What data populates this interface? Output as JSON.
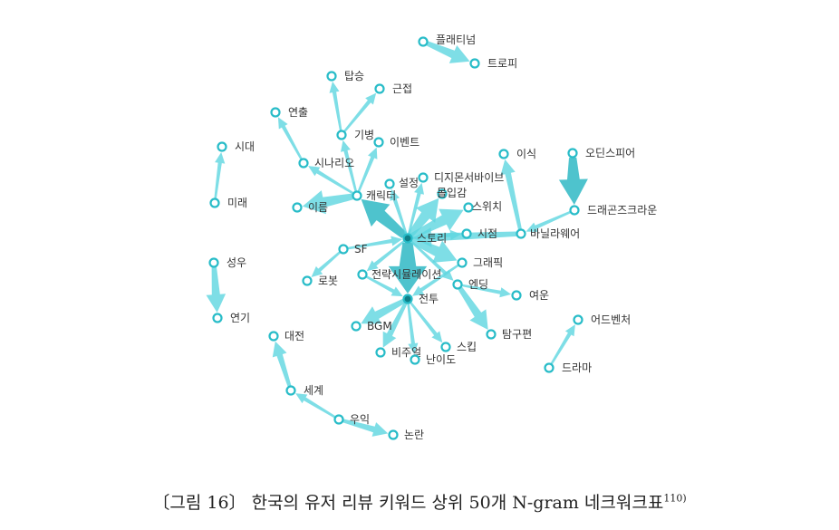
{
  "colors": {
    "edge": "#5ED6E0",
    "edge_dark": "#2FB8C4",
    "node_stroke": "#28BCC8",
    "node_center": "#0F7F88"
  },
  "nodes": [
    {
      "id": "platinum",
      "label": "플래티넘"
    },
    {
      "id": "trophy",
      "label": "트로피"
    },
    {
      "id": "tapseung",
      "label": "탑승"
    },
    {
      "id": "geunjeop",
      "label": "근접"
    },
    {
      "id": "yeonchul",
      "label": "연출"
    },
    {
      "id": "gibyeong",
      "label": "기병"
    },
    {
      "id": "event",
      "label": "이벤트"
    },
    {
      "id": "sidae",
      "label": "시대"
    },
    {
      "id": "scenario",
      "label": "시나리오"
    },
    {
      "id": "isik",
      "label": "이식"
    },
    {
      "id": "odinsphere",
      "label": "오딘스피어"
    },
    {
      "id": "divinity",
      "label": "디지몬서바이브"
    },
    {
      "id": "seoljeong",
      "label": "설정"
    },
    {
      "id": "character",
      "label": "캐릭터"
    },
    {
      "id": "immersion",
      "label": "몰입감"
    },
    {
      "id": "mirae",
      "label": "미래"
    },
    {
      "id": "ireum",
      "label": "이름"
    },
    {
      "id": "switch",
      "label": "스위치"
    },
    {
      "id": "dragoncrown",
      "label": "드래곤즈크라운"
    },
    {
      "id": "story",
      "label": "스토리"
    },
    {
      "id": "sijeom",
      "label": "시점"
    },
    {
      "id": "vanilla",
      "label": "바닐라웨어"
    },
    {
      "id": "sf",
      "label": "SF"
    },
    {
      "id": "seongwoo",
      "label": "성우"
    },
    {
      "id": "graphic",
      "label": "그래픽"
    },
    {
      "id": "simulation",
      "label": "전략시뮬레이션"
    },
    {
      "id": "robot",
      "label": "로봇"
    },
    {
      "id": "ending",
      "label": "엔딩"
    },
    {
      "id": "battle",
      "label": "전투"
    },
    {
      "id": "yeoun",
      "label": "여운"
    },
    {
      "id": "yeongi",
      "label": "연기"
    },
    {
      "id": "adventure",
      "label": "어드벤처"
    },
    {
      "id": "bgm",
      "label": "BGM"
    },
    {
      "id": "daejeon",
      "label": "대전"
    },
    {
      "id": "tamgu",
      "label": "탐구편"
    },
    {
      "id": "skip",
      "label": "스킵"
    },
    {
      "id": "visual",
      "label": "비주얼"
    },
    {
      "id": "nanido",
      "label": "난이도"
    },
    {
      "id": "drama",
      "label": "드라마"
    },
    {
      "id": "segye",
      "label": "세계"
    },
    {
      "id": "uik",
      "label": "우익"
    },
    {
      "id": "nonran",
      "label": "논란"
    }
  ],
  "edges": [
    {
      "from": "platinum",
      "to": "trophy",
      "weight": 3
    },
    {
      "from": "gibyeong",
      "to": "tapseung",
      "weight": 1
    },
    {
      "from": "gibyeong",
      "to": "geunjeop",
      "weight": 1
    },
    {
      "from": "scenario",
      "to": "yeonchul",
      "weight": 1
    },
    {
      "from": "character",
      "to": "gibyeong",
      "weight": 1
    },
    {
      "from": "character",
      "to": "event",
      "weight": 1
    },
    {
      "from": "mirae",
      "to": "sidae",
      "weight": 1
    },
    {
      "from": "character",
      "to": "scenario",
      "weight": 1
    },
    {
      "from": "character",
      "to": "ireum",
      "weight": 4
    },
    {
      "from": "story",
      "to": "character",
      "weight": 5
    },
    {
      "from": "story",
      "to": "seoljeong",
      "weight": 1
    },
    {
      "from": "story",
      "to": "divinity",
      "weight": 1
    },
    {
      "from": "story",
      "to": "immersion",
      "weight": 4
    },
    {
      "from": "story",
      "to": "switch",
      "weight": 4
    },
    {
      "from": "vanilla",
      "to": "isik",
      "weight": 2
    },
    {
      "from": "odinsphere",
      "to": "dragoncrown",
      "weight": 5
    },
    {
      "from": "dragoncrown",
      "to": "vanilla",
      "weight": 1
    },
    {
      "from": "vanilla",
      "to": "story",
      "weight": 3
    },
    {
      "from": "story",
      "to": "sijeom",
      "weight": 1
    },
    {
      "from": "story",
      "to": "graphic",
      "weight": 4
    },
    {
      "from": "sf",
      "to": "story",
      "weight": 1
    },
    {
      "from": "story",
      "to": "simulation",
      "weight": 1
    },
    {
      "from": "story",
      "to": "battle",
      "weight": 7
    },
    {
      "from": "story",
      "to": "ending",
      "weight": 1
    },
    {
      "from": "sf",
      "to": "robot",
      "weight": 1
    },
    {
      "from": "seongwoo",
      "to": "yeongi",
      "weight": 3
    },
    {
      "from": "simulation",
      "to": "battle",
      "weight": 1
    },
    {
      "from": "graphic",
      "to": "battle",
      "weight": 1
    },
    {
      "from": "ending",
      "to": "yeoun",
      "weight": 1
    },
    {
      "from": "ending",
      "to": "tamgu",
      "weight": 3
    },
    {
      "from": "battle",
      "to": "bgm",
      "weight": 3
    },
    {
      "from": "battle",
      "to": "visual",
      "weight": 2
    },
    {
      "from": "battle",
      "to": "skip",
      "weight": 1
    },
    {
      "from": "battle",
      "to": "nanido",
      "weight": 1
    },
    {
      "from": "segye",
      "to": "daejeon",
      "weight": 2
    },
    {
      "from": "drama",
      "to": "adventure",
      "weight": 1
    },
    {
      "from": "uik",
      "to": "segye",
      "weight": 1
    },
    {
      "from": "uik",
      "to": "nonran",
      "weight": 2
    }
  ],
  "caption": {
    "text": "〔그림 16〕 한국의 유저 리뷰 키워드 상위 50개 N-gram 네크워크표",
    "note": "110)"
  }
}
